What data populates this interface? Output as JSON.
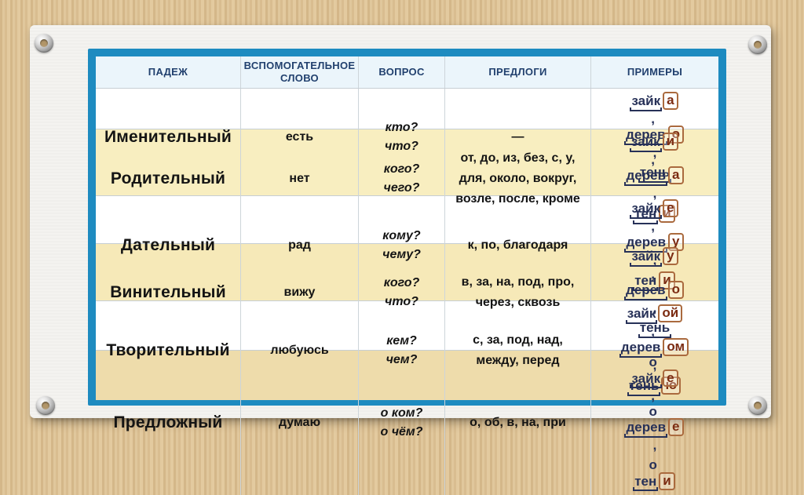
{
  "table": {
    "headers": [
      "ПАДЕЖ",
      "ВСПОМОГАТЕЛЬНОЕ\nСЛОВО",
      "ВОПРОС",
      "ПРЕДЛОГИ",
      "ПРИМЕРЫ"
    ],
    "rows": [
      {
        "case": "Именительный",
        "helper": "есть",
        "question": "кто?\nчто?",
        "prepositions": "—",
        "examples": [
          [
            {
              "pre": "",
              "stem": "зайк",
              "end": "а",
              "post": ", "
            },
            {
              "pre": "",
              "stem": "дерев",
              "end": "о",
              "post": ","
            }
          ],
          [
            {
              "pre": "",
              "stem": "тень",
              "end": "",
              "post": ""
            }
          ]
        ]
      },
      {
        "case": "Родительный",
        "helper": "нет",
        "question": "кого?\nчего?",
        "prepositions": "от, до, из, без, с, у,\nдля, около, вокруг,\nвозле, после, кроме",
        "examples": [
          [
            {
              "pre": "",
              "stem": "зайк",
              "end": "и",
              "post": ", "
            },
            {
              "pre": "",
              "stem": "дерев",
              "end": "а",
              "post": ","
            }
          ],
          [
            {
              "pre": "",
              "stem": "тен",
              "end": "и",
              "post": ""
            }
          ]
        ]
      },
      {
        "case": "Дательный",
        "helper": "рад",
        "question": "кому?\nчему?",
        "prepositions": "к, по, благодаря",
        "examples": [
          [
            {
              "pre": "",
              "stem": "зайк",
              "end": "е",
              "post": ", "
            },
            {
              "pre": "",
              "stem": "дерев",
              "end": "у",
              "post": ","
            }
          ],
          [
            {
              "pre": "",
              "stem": "тен",
              "end": "и",
              "post": ""
            }
          ]
        ]
      },
      {
        "case": "Винительный",
        "helper": "вижу",
        "question": "кого?\nчто?",
        "prepositions": "в, за, на, под, про,\nчерез, сквозь",
        "examples": [
          [
            {
              "pre": "",
              "stem": "зайк",
              "end": "у",
              "post": ", "
            },
            {
              "pre": "",
              "stem": "дерев",
              "end": "о",
              "post": ","
            }
          ],
          [
            {
              "pre": "",
              "stem": "тень",
              "end": "",
              "post": ""
            }
          ]
        ]
      },
      {
        "case": "Творительный",
        "helper": "любуюсь",
        "question": "кем?\nчем?",
        "prepositions": "с, за, под, над,\nмежду, перед",
        "examples": [
          [
            {
              "pre": "",
              "stem": "зайк",
              "end": "ой",
              "post": ", "
            },
            {
              "pre": "",
              "stem": "дерев",
              "end": "ом",
              "post": ","
            }
          ],
          [
            {
              "pre": "",
              "stem": "тень",
              "end": "ю",
              "post": ""
            }
          ]
        ]
      },
      {
        "case": "Предложный",
        "helper": "думаю",
        "question": "о ком?\nо чём?",
        "prepositions": "о, об, в, на, при",
        "examples": [
          [
            {
              "pre": "о ",
              "stem": "зайк",
              "end": "е",
              "post": ", "
            },
            {
              "pre": "о ",
              "stem": "дерев",
              "end": "е",
              "post": ","
            }
          ],
          [
            {
              "pre": "о ",
              "stem": "тен",
              "end": "и",
              "post": ""
            }
          ]
        ]
      }
    ]
  },
  "colors": {
    "frame_blue": "#1e8bc0",
    "header_bg": "#ebf5fb",
    "header_text": "#21406e",
    "row_yellow": "#f8eec0",
    "example_text": "#273158",
    "ending_box_border": "#aa6a3e",
    "ending_letter": "#7c2c12",
    "wall_tan": "#dcc095",
    "card_white": "#f4f3f0"
  }
}
